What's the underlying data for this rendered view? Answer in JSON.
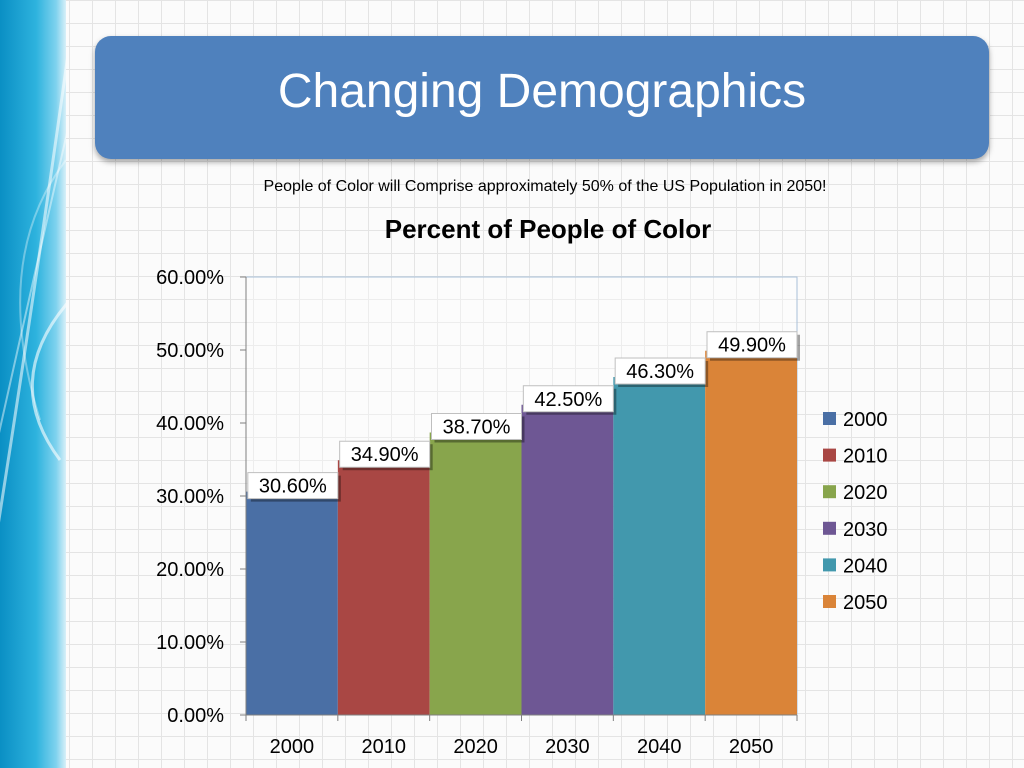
{
  "slide": {
    "title": "Changing Demographics",
    "subtitle": "People of Color will Comprise approximately 50% of the US Population in 2050!"
  },
  "colors": {
    "title_bg": "#4f81bd",
    "bars": [
      "#4a6fa5",
      "#a94744",
      "#88a54c",
      "#6e5794",
      "#4298ad",
      "#da8438"
    ]
  },
  "chart_data": {
    "type": "bar",
    "title": "Percent of People of Color",
    "categories": [
      "2000",
      "2010",
      "2020",
      "2030",
      "2040",
      "2050"
    ],
    "values": [
      30.6,
      34.9,
      38.7,
      42.5,
      46.3,
      49.9
    ],
    "data_labels": [
      "30.60%",
      "34.90%",
      "38.70%",
      "42.50%",
      "46.30%",
      "49.90%"
    ],
    "yticks": [
      "0.00%",
      "10.00%",
      "20.00%",
      "30.00%",
      "40.00%",
      "50.00%",
      "60.00%"
    ],
    "ylim": [
      0,
      60
    ],
    "legend": [
      "2000",
      "2010",
      "2020",
      "2030",
      "2040",
      "2050"
    ],
    "legend_position": "right",
    "grid": false
  }
}
